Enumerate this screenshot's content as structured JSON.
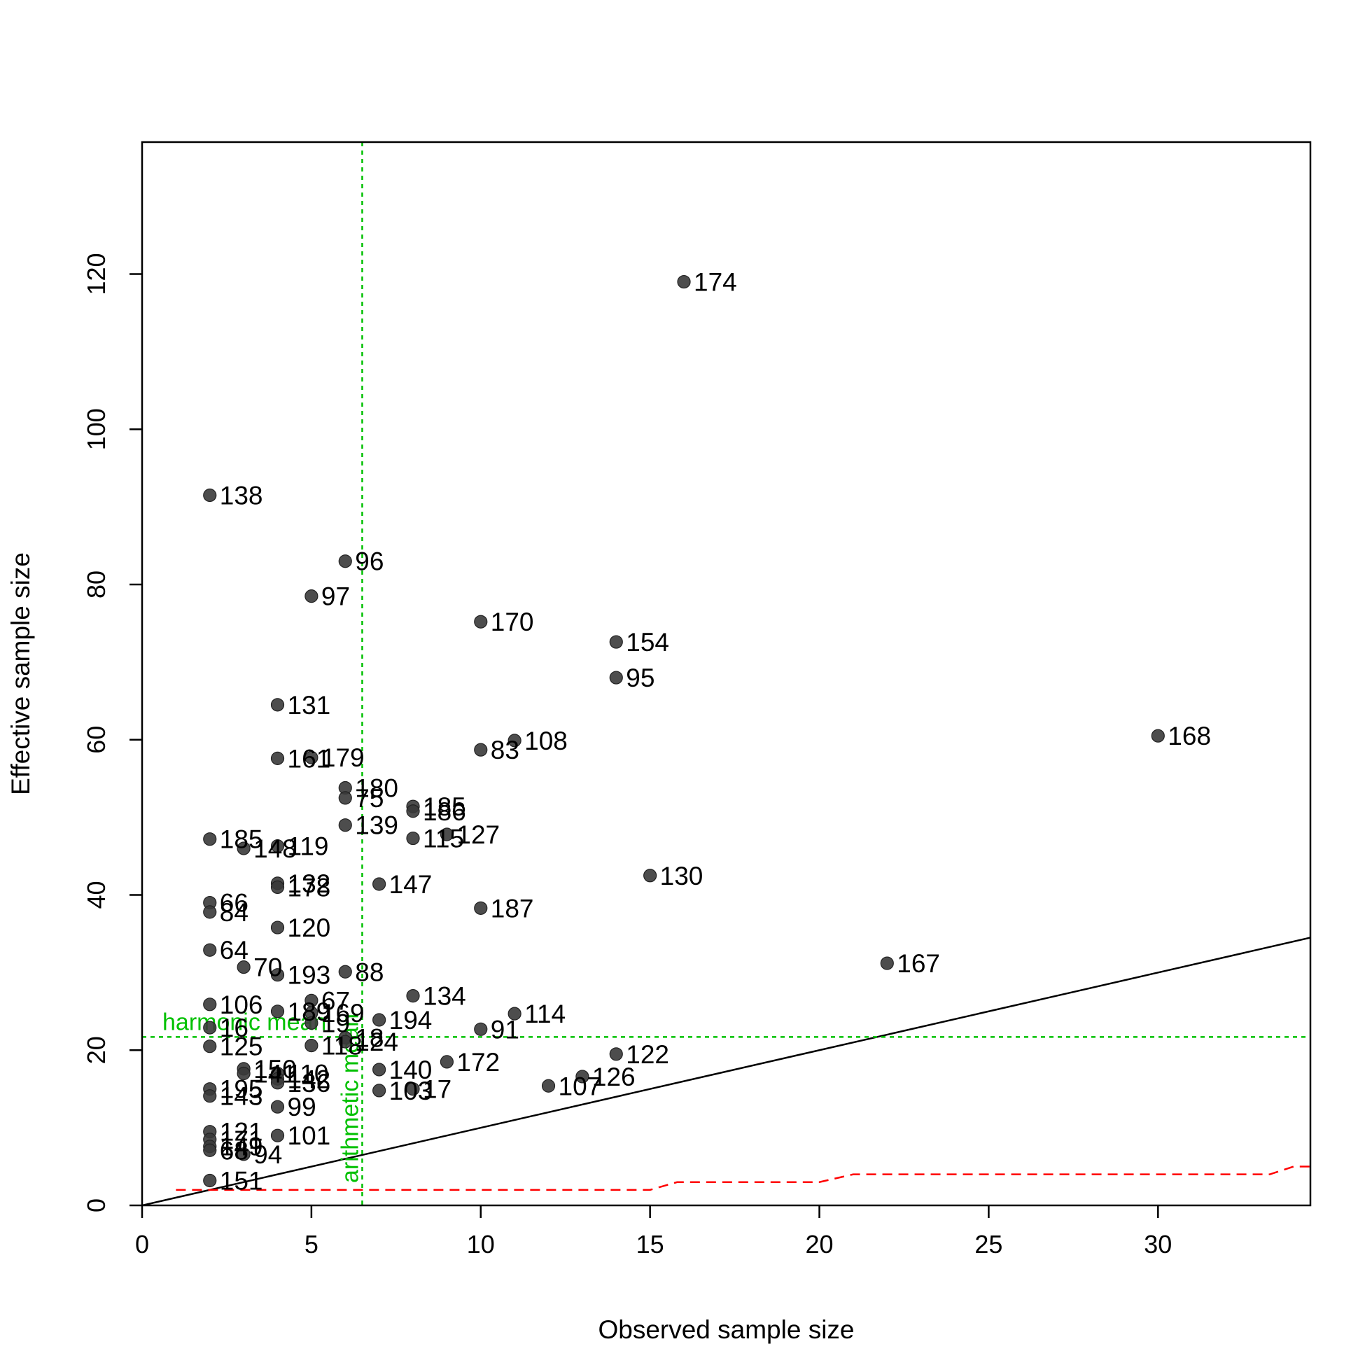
{
  "chart_data": {
    "type": "scatter",
    "title": "",
    "xlabel": "Observed sample size",
    "ylabel": "Effective sample size",
    "xlim": [
      0,
      34.5
    ],
    "ylim": [
      0,
      137
    ],
    "xticks": [
      0,
      5,
      10,
      15,
      20,
      25,
      30
    ],
    "yticks": [
      0,
      20,
      40,
      60,
      80,
      100,
      120
    ],
    "grid": false,
    "colors": {
      "points": "#3a3a3a",
      "identity_line": "#000000",
      "reference_lines": "#00c000",
      "minimum_ess_line": "#ff0000"
    },
    "points": [
      {
        "label": "174",
        "x": 16,
        "y": 119
      },
      {
        "label": "138",
        "x": 2,
        "y": 91.5
      },
      {
        "label": "96",
        "x": 6,
        "y": 83
      },
      {
        "label": "97",
        "x": 5,
        "y": 78.5
      },
      {
        "label": "170",
        "x": 10,
        "y": 75.2
      },
      {
        "label": "154",
        "x": 14,
        "y": 72.6
      },
      {
        "label": "95",
        "x": 14,
        "y": 68
      },
      {
        "label": "131",
        "x": 4,
        "y": 64.5
      },
      {
        "label": "168",
        "x": 30,
        "y": 60.5
      },
      {
        "label": "108",
        "x": 11,
        "y": 59.9
      },
      {
        "label": "83",
        "x": 10,
        "y": 58.7
      },
      {
        "label": "161",
        "x": 4,
        "y": 57.6
      },
      {
        "label": "179",
        "x": 5,
        "y": 57.7
      },
      {
        "label": "180",
        "x": 6,
        "y": 53.8
      },
      {
        "label": "75",
        "x": 6,
        "y": 52.5
      },
      {
        "label": "185",
        "x": 8,
        "y": 51.4
      },
      {
        "label": "186",
        "x": 8,
        "y": 50.8
      },
      {
        "label": "139",
        "x": 6,
        "y": 49
      },
      {
        "label": "127",
        "x": 9,
        "y": 47.8
      },
      {
        "label": "115",
        "x": 8,
        "y": 47.3
      },
      {
        "label": "185",
        "x": 2,
        "y": 47.2
      },
      {
        "label": "148",
        "x": 3,
        "y": 46
      },
      {
        "label": "119",
        "x": 4,
        "y": 46.3
      },
      {
        "label": "130",
        "x": 15,
        "y": 42.5
      },
      {
        "label": "147",
        "x": 7,
        "y": 41.4
      },
      {
        "label": "132",
        "x": 4,
        "y": 41.5
      },
      {
        "label": "178",
        "x": 4,
        "y": 41
      },
      {
        "label": "187",
        "x": 10,
        "y": 38.3
      },
      {
        "label": "66",
        "x": 2,
        "y": 39
      },
      {
        "label": "84",
        "x": 2,
        "y": 37.8
      },
      {
        "label": "120",
        "x": 4,
        "y": 35.8
      },
      {
        "label": "64",
        "x": 2,
        "y": 32.9
      },
      {
        "label": "167",
        "x": 22,
        "y": 31.2
      },
      {
        "label": "70",
        "x": 3,
        "y": 30.7
      },
      {
        "label": "193",
        "x": 4,
        "y": 29.7
      },
      {
        "label": "88",
        "x": 6,
        "y": 30.1
      },
      {
        "label": "134",
        "x": 8,
        "y": 27
      },
      {
        "label": "67",
        "x": 5,
        "y": 26.4
      },
      {
        "label": "106",
        "x": 2,
        "y": 25.9
      },
      {
        "label": "189",
        "x": 4,
        "y": 25
      },
      {
        "label": "169",
        "x": 5,
        "y": 24.8
      },
      {
        "label": "114",
        "x": 11,
        "y": 24.7
      },
      {
        "label": "194",
        "x": 7,
        "y": 23.9
      },
      {
        "label": "19",
        "x": 5,
        "y": 23.5
      },
      {
        "label": "16",
        "x": 2,
        "y": 22.9
      },
      {
        "label": "91",
        "x": 10,
        "y": 22.7
      },
      {
        "label": "18",
        "x": 6,
        "y": 21.6
      },
      {
        "label": "124",
        "x": 6,
        "y": 21.1
      },
      {
        "label": "118",
        "x": 5,
        "y": 20.6
      },
      {
        "label": "125",
        "x": 2,
        "y": 20.5
      },
      {
        "label": "122",
        "x": 14,
        "y": 19.5
      },
      {
        "label": "172",
        "x": 9,
        "y": 18.5
      },
      {
        "label": "140",
        "x": 7,
        "y": 17.5
      },
      {
        "label": "150",
        "x": 3,
        "y": 17.6
      },
      {
        "label": "141",
        "x": 3,
        "y": 17
      },
      {
        "label": "110",
        "x": 4,
        "y": 17
      },
      {
        "label": "142",
        "x": 4,
        "y": 16.3
      },
      {
        "label": "126",
        "x": 13,
        "y": 16.6
      },
      {
        "label": "136",
        "x": 4,
        "y": 15.8
      },
      {
        "label": "107",
        "x": 12,
        "y": 15.4
      },
      {
        "label": "17",
        "x": 8,
        "y": 15
      },
      {
        "label": "103",
        "x": 7,
        "y": 14.8
      },
      {
        "label": "195",
        "x": 2,
        "y": 15
      },
      {
        "label": "143",
        "x": 2,
        "y": 14.1
      },
      {
        "label": "99",
        "x": 4,
        "y": 12.7
      },
      {
        "label": "121",
        "x": 2,
        "y": 9.5
      },
      {
        "label": "101",
        "x": 4,
        "y": 9
      },
      {
        "label": "171",
        "x": 2,
        "y": 8.5
      },
      {
        "label": "149",
        "x": 2,
        "y": 7.6
      },
      {
        "label": "68",
        "x": 2,
        "y": 7.1
      },
      {
        "label": "94",
        "x": 3,
        "y": 6.6
      },
      {
        "label": "151",
        "x": 2,
        "y": 3.2
      }
    ],
    "reference_lines": {
      "identity": {
        "slope": 1,
        "intercept": 0
      },
      "arithmetic_mean": {
        "x": 6.5,
        "label": "arithmetic mean"
      },
      "harmonic_mean": {
        "y": 21.7,
        "label": "harmonic mean"
      },
      "minimum_ess": [
        [
          1,
          2
        ],
        [
          15,
          2
        ],
        [
          15.8,
          3
        ],
        [
          20,
          3
        ],
        [
          21,
          4
        ],
        [
          33.3,
          4
        ],
        [
          34,
          5
        ],
        [
          34.5,
          5
        ]
      ]
    }
  }
}
